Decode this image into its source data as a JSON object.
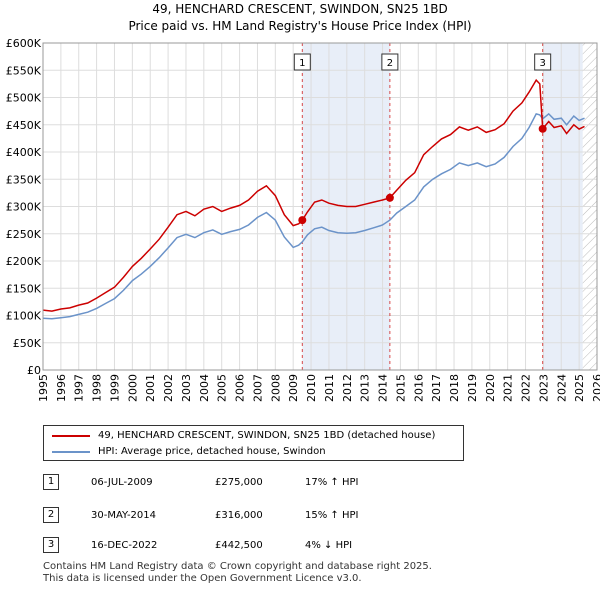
{
  "chart_data": {
    "type": "line",
    "title": "49, HENCHARD CRESCENT, SWINDON, SN25 1BD",
    "subtitle": "Price paid vs. HM Land Registry's House Price Index (HPI)",
    "xlabel": "",
    "ylabel": "",
    "xlim": [
      1995,
      2026
    ],
    "ylim": [
      0,
      600000
    ],
    "x_ticks": [
      "1995",
      "1996",
      "1997",
      "1998",
      "1999",
      "2000",
      "2001",
      "2002",
      "2003",
      "2004",
      "2005",
      "2006",
      "2007",
      "2008",
      "2009",
      "2010",
      "2011",
      "2012",
      "2013",
      "2014",
      "2015",
      "2016",
      "2017",
      "2018",
      "2019",
      "2020",
      "2021",
      "2022",
      "2023",
      "2024",
      "2025",
      "2026"
    ],
    "y_ticks": [
      {
        "value": 0,
        "label": "£0"
      },
      {
        "value": 50000,
        "label": "£50K"
      },
      {
        "value": 100000,
        "label": "£100K"
      },
      {
        "value": 150000,
        "label": "£150K"
      },
      {
        "value": 200000,
        "label": "£200K"
      },
      {
        "value": 250000,
        "label": "£250K"
      },
      {
        "value": 300000,
        "label": "£300K"
      },
      {
        "value": 350000,
        "label": "£350K"
      },
      {
        "value": 400000,
        "label": "£400K"
      },
      {
        "value": 450000,
        "label": "£450K"
      },
      {
        "value": 500000,
        "label": "£500K"
      },
      {
        "value": 550000,
        "label": "£550K"
      },
      {
        "value": 600000,
        "label": "£600K"
      }
    ],
    "grid": true,
    "shaded_ranges": [
      [
        2009.51,
        2014.41
      ],
      [
        2022.96,
        2025.2
      ]
    ],
    "hatched_from": 2025.2,
    "series": [
      {
        "name": "49, HENCHARD CRESCENT, SWINDON, SN25 1BD (detached house)",
        "color": "#cc0000",
        "x": [
          1995.0,
          1995.5,
          1996.0,
          1996.5,
          1997.0,
          1997.5,
          1998.0,
          1998.5,
          1999.0,
          1999.5,
          2000.0,
          2000.5,
          2001.0,
          2001.5,
          2002.0,
          2002.5,
          2003.0,
          2003.5,
          2004.0,
          2004.5,
          2005.0,
          2005.5,
          2006.0,
          2006.5,
          2007.0,
          2007.5,
          2008.0,
          2008.5,
          2009.0,
          2009.3,
          2009.51,
          2009.8,
          2010.2,
          2010.6,
          2011.0,
          2011.5,
          2012.0,
          2012.5,
          2013.0,
          2013.5,
          2014.0,
          2014.41,
          2014.8,
          2015.3,
          2015.8,
          2016.3,
          2016.8,
          2017.3,
          2017.8,
          2018.3,
          2018.8,
          2019.3,
          2019.8,
          2020.3,
          2020.8,
          2021.3,
          2021.8,
          2022.2,
          2022.6,
          2022.8,
          2022.96,
          2023.3,
          2023.6,
          2024.0,
          2024.3,
          2024.7,
          2025.0,
          2025.3
        ],
        "y": [
          110000,
          108000,
          112000,
          114000,
          119000,
          123000,
          132000,
          142000,
          152000,
          170000,
          190000,
          205000,
          222000,
          240000,
          262000,
          285000,
          291000,
          283000,
          295000,
          300000,
          291000,
          297000,
          302000,
          312000,
          328000,
          338000,
          320000,
          285000,
          265000,
          268000,
          275000,
          290000,
          308000,
          312000,
          306000,
          302000,
          300000,
          300000,
          304000,
          308000,
          312000,
          316000,
          330000,
          348000,
          362000,
          395000,
          410000,
          424000,
          432000,
          446000,
          440000,
          446000,
          436000,
          441000,
          452000,
          475000,
          490000,
          510000,
          532000,
          525000,
          442500,
          456000,
          445000,
          448000,
          434000,
          450000,
          442000,
          447000
        ]
      },
      {
        "name": "HPI: Average price, detached house, Swindon",
        "color": "#6b93c9",
        "x": [
          1995.0,
          1995.5,
          1996.0,
          1996.5,
          1997.0,
          1997.5,
          1998.0,
          1998.5,
          1999.0,
          1999.5,
          2000.0,
          2000.5,
          2001.0,
          2001.5,
          2002.0,
          2002.5,
          2003.0,
          2003.5,
          2004.0,
          2004.5,
          2005.0,
          2005.5,
          2006.0,
          2006.5,
          2007.0,
          2007.5,
          2008.0,
          2008.5,
          2009.0,
          2009.3,
          2009.51,
          2009.8,
          2010.2,
          2010.6,
          2011.0,
          2011.5,
          2012.0,
          2012.5,
          2013.0,
          2013.5,
          2014.0,
          2014.41,
          2014.8,
          2015.3,
          2015.8,
          2016.3,
          2016.8,
          2017.3,
          2017.8,
          2018.3,
          2018.8,
          2019.3,
          2019.8,
          2020.3,
          2020.8,
          2021.3,
          2021.8,
          2022.2,
          2022.6,
          2022.8,
          2022.96,
          2023.3,
          2023.6,
          2024.0,
          2024.3,
          2024.7,
          2025.0,
          2025.3
        ],
        "y": [
          95000,
          94000,
          96000,
          98000,
          102000,
          106000,
          113000,
          122000,
          131000,
          146000,
          164000,
          176000,
          190000,
          206000,
          224000,
          243000,
          249000,
          243000,
          252000,
          257000,
          249000,
          254000,
          258000,
          266000,
          280000,
          289000,
          275000,
          244000,
          225000,
          229000,
          235000,
          248000,
          259000,
          262000,
          256000,
          252000,
          251000,
          252000,
          256000,
          261000,
          266000,
          275000,
          288000,
          300000,
          312000,
          336000,
          350000,
          360000,
          368000,
          380000,
          375000,
          380000,
          373000,
          378000,
          390000,
          410000,
          425000,
          445000,
          470000,
          468000,
          461000,
          470000,
          460000,
          462000,
          450000,
          466000,
          458000,
          462000
        ]
      }
    ],
    "sales": [
      {
        "label": "1",
        "x": 2009.51,
        "price": 275000
      },
      {
        "label": "2",
        "x": 2014.41,
        "price": 316000
      },
      {
        "label": "3",
        "x": 2022.96,
        "price": 442500
      }
    ]
  },
  "legend": {
    "property": "49, HENCHARD CRESCENT, SWINDON, SN25 1BD (detached house)",
    "hpi": "HPI: Average price, detached house, Swindon",
    "property_color": "#cc0000",
    "hpi_color": "#6b93c9"
  },
  "transactions": [
    {
      "num": "1",
      "date": "06-JUL-2009",
      "price": "£275,000",
      "hpi": "17% ↑ HPI"
    },
    {
      "num": "2",
      "date": "30-MAY-2014",
      "price": "£316,000",
      "hpi": "15% ↑ HPI"
    },
    {
      "num": "3",
      "date": "16-DEC-2022",
      "price": "£442,500",
      "hpi": "4% ↓ HPI"
    }
  ],
  "footer": {
    "line1": "Contains HM Land Registry data © Crown copyright and database right 2025.",
    "line2": "This data is licensed under the Open Government Licence v3.0."
  }
}
